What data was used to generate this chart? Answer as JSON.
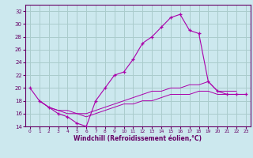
{
  "xlabel": "Windchill (Refroidissement éolien,°C)",
  "bg_color": "#cce8ee",
  "grid_color": "#aacccc",
  "line_color": "#aa00aa",
  "line_color2": "#660066",
  "xlim": [
    -0.5,
    23.5
  ],
  "ylim": [
    14,
    33
  ],
  "yticks": [
    14,
    16,
    18,
    20,
    22,
    24,
    26,
    28,
    30,
    32
  ],
  "xticks": [
    0,
    1,
    2,
    3,
    4,
    5,
    6,
    7,
    8,
    9,
    10,
    11,
    12,
    13,
    14,
    15,
    16,
    17,
    18,
    19,
    20,
    21,
    22,
    23
  ],
  "series": [
    {
      "x": [
        0,
        1,
        2,
        3,
        4,
        5,
        6,
        7,
        8,
        9,
        10,
        11,
        12,
        13,
        14,
        15,
        16,
        17,
        18,
        19,
        20,
        21,
        22,
        23
      ],
      "y": [
        20.0,
        18.0,
        17.0,
        16.0,
        15.5,
        14.5,
        14.0,
        18.0,
        20.0,
        22.0,
        22.5,
        24.5,
        27.0,
        28.0,
        29.5,
        31.0,
        31.5,
        29.0,
        28.5,
        21.0,
        19.5,
        19.0,
        19.0,
        19.0
      ],
      "marker": true
    },
    {
      "x": [
        1,
        2,
        3,
        4,
        5,
        6,
        7,
        8,
        9,
        10,
        11,
        12,
        13,
        14,
        15,
        16,
        17,
        18,
        19,
        20,
        21,
        22
      ],
      "y": [
        18.0,
        17.0,
        16.5,
        16.0,
        16.0,
        16.0,
        16.5,
        17.0,
        17.5,
        18.0,
        18.5,
        19.0,
        19.5,
        19.5,
        20.0,
        20.0,
        20.5,
        20.5,
        21.0,
        19.5,
        19.5,
        19.5
      ],
      "marker": false
    },
    {
      "x": [
        1,
        2,
        3,
        4,
        5,
        6,
        7,
        8,
        9,
        10,
        11,
        12,
        13,
        14,
        15,
        16,
        17,
        18,
        19,
        20,
        21,
        22
      ],
      "y": [
        18.0,
        17.0,
        16.5,
        16.5,
        16.0,
        15.5,
        16.0,
        16.5,
        17.0,
        17.5,
        17.5,
        18.0,
        18.0,
        18.5,
        19.0,
        19.0,
        19.0,
        19.5,
        19.5,
        19.0,
        19.0,
        19.0
      ],
      "marker": false
    }
  ]
}
